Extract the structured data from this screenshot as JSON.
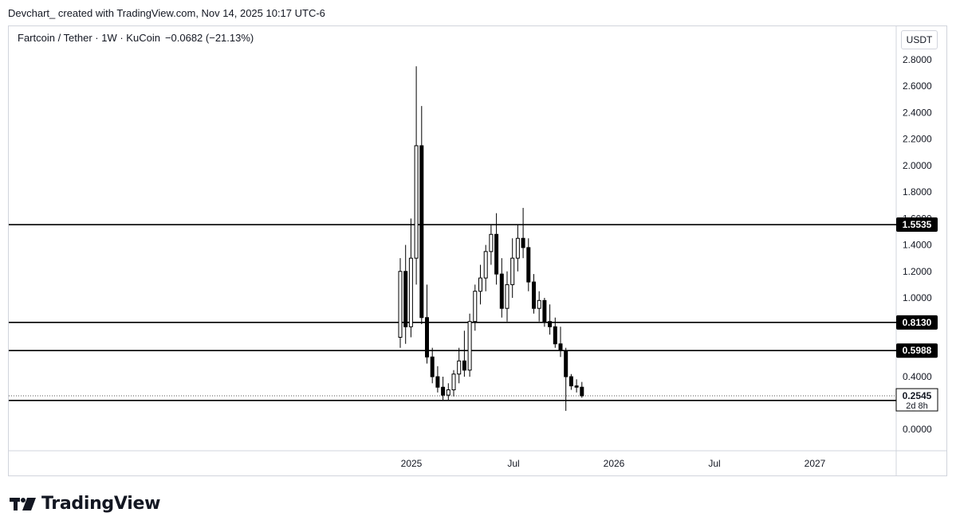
{
  "header": {
    "attribution": "Devchart_ created with TradingView.com, Nov 14, 2025 10:17 UTC-6"
  },
  "legend": {
    "symbol": "Fartcoin / Tether · 1W · KuCoin",
    "change": "−0.0682 (−21.13%)"
  },
  "currency_button": "USDT",
  "logo": {
    "text": "TradingView"
  },
  "colors": {
    "candle_up": "#ffffff",
    "candle_down": "#000000",
    "grid": "#d1d4dc",
    "text": "#131722"
  },
  "chart_data": {
    "type": "candlestick",
    "interval": "1W",
    "y_axis": {
      "ticks": [
        "2.8000",
        "2.6000",
        "2.4000",
        "2.2000",
        "2.0000",
        "1.8000",
        "1.6000",
        "1.4000",
        "1.2000",
        "1.0000",
        "0.4000",
        "0.0000"
      ],
      "scale": "percent/adaptive"
    },
    "x_axis": {
      "ticks": [
        "2025",
        "Jul",
        "2026",
        "Jul",
        "2027"
      ]
    },
    "horizontal_lines": [
      {
        "label": "1.5535",
        "value": 1.5535
      },
      {
        "label": "0.8130",
        "value": 0.813
      },
      {
        "label": "0.5988",
        "value": 0.5988
      },
      {
        "label": "0.2191",
        "value": 0.2191
      }
    ],
    "last_price": {
      "label": "0.2545",
      "value": 0.2545,
      "countdown": "2d 8h"
    },
    "candles": [
      {
        "o": 0.7,
        "h": 1.3,
        "l": 0.62,
        "c": 1.2
      },
      {
        "o": 1.2,
        "h": 1.4,
        "l": 0.65,
        "c": 0.78
      },
      {
        "o": 0.78,
        "h": 1.6,
        "l": 0.7,
        "c": 1.3
      },
      {
        "o": 1.3,
        "h": 2.75,
        "l": 1.1,
        "c": 2.15
      },
      {
        "o": 2.15,
        "h": 2.45,
        "l": 0.8,
        "c": 0.85
      },
      {
        "o": 0.85,
        "h": 1.1,
        "l": 0.5,
        "c": 0.55
      },
      {
        "o": 0.55,
        "h": 0.62,
        "l": 0.35,
        "c": 0.4
      },
      {
        "o": 0.4,
        "h": 0.48,
        "l": 0.28,
        "c": 0.32
      },
      {
        "o": 0.32,
        "h": 0.4,
        "l": 0.22,
        "c": 0.26
      },
      {
        "o": 0.26,
        "h": 0.35,
        "l": 0.22,
        "c": 0.3
      },
      {
        "o": 0.3,
        "h": 0.45,
        "l": 0.25,
        "c": 0.42
      },
      {
        "o": 0.42,
        "h": 0.62,
        "l": 0.35,
        "c": 0.52
      },
      {
        "o": 0.52,
        "h": 0.75,
        "l": 0.4,
        "c": 0.45
      },
      {
        "o": 0.45,
        "h": 0.88,
        "l": 0.4,
        "c": 0.82
      },
      {
        "o": 0.82,
        "h": 1.1,
        "l": 0.75,
        "c": 1.05
      },
      {
        "o": 1.05,
        "h": 1.25,
        "l": 0.95,
        "c": 1.15
      },
      {
        "o": 1.15,
        "h": 1.4,
        "l": 1.05,
        "c": 1.35
      },
      {
        "o": 1.35,
        "h": 1.55,
        "l": 1.25,
        "c": 1.48
      },
      {
        "o": 1.48,
        "h": 1.64,
        "l": 1.1,
        "c": 1.18
      },
      {
        "o": 1.18,
        "h": 1.3,
        "l": 0.85,
        "c": 0.92
      },
      {
        "o": 0.92,
        "h": 1.2,
        "l": 0.82,
        "c": 1.1
      },
      {
        "o": 1.1,
        "h": 1.45,
        "l": 1.0,
        "c": 1.3
      },
      {
        "o": 1.3,
        "h": 1.55,
        "l": 1.2,
        "c": 1.45
      },
      {
        "o": 1.45,
        "h": 1.68,
        "l": 1.3,
        "c": 1.38
      },
      {
        "o": 1.38,
        "h": 1.45,
        "l": 1.05,
        "c": 1.12
      },
      {
        "o": 1.12,
        "h": 1.18,
        "l": 0.88,
        "c": 0.92
      },
      {
        "o": 0.92,
        "h": 1.05,
        "l": 0.82,
        "c": 0.98
      },
      {
        "o": 0.98,
        "h": 1.0,
        "l": 0.78,
        "c": 0.82
      },
      {
        "o": 0.82,
        "h": 0.95,
        "l": 0.72,
        "c": 0.78
      },
      {
        "o": 0.78,
        "h": 0.85,
        "l": 0.62,
        "c": 0.65
      },
      {
        "o": 0.65,
        "h": 0.78,
        "l": 0.55,
        "c": 0.6
      },
      {
        "o": 0.6,
        "h": 0.62,
        "l": 0.14,
        "c": 0.4
      },
      {
        "o": 0.4,
        "h": 0.42,
        "l": 0.3,
        "c": 0.33
      },
      {
        "o": 0.33,
        "h": 0.38,
        "l": 0.28,
        "c": 0.32
      },
      {
        "o": 0.32,
        "h": 0.36,
        "l": 0.24,
        "c": 0.2545
      }
    ]
  }
}
